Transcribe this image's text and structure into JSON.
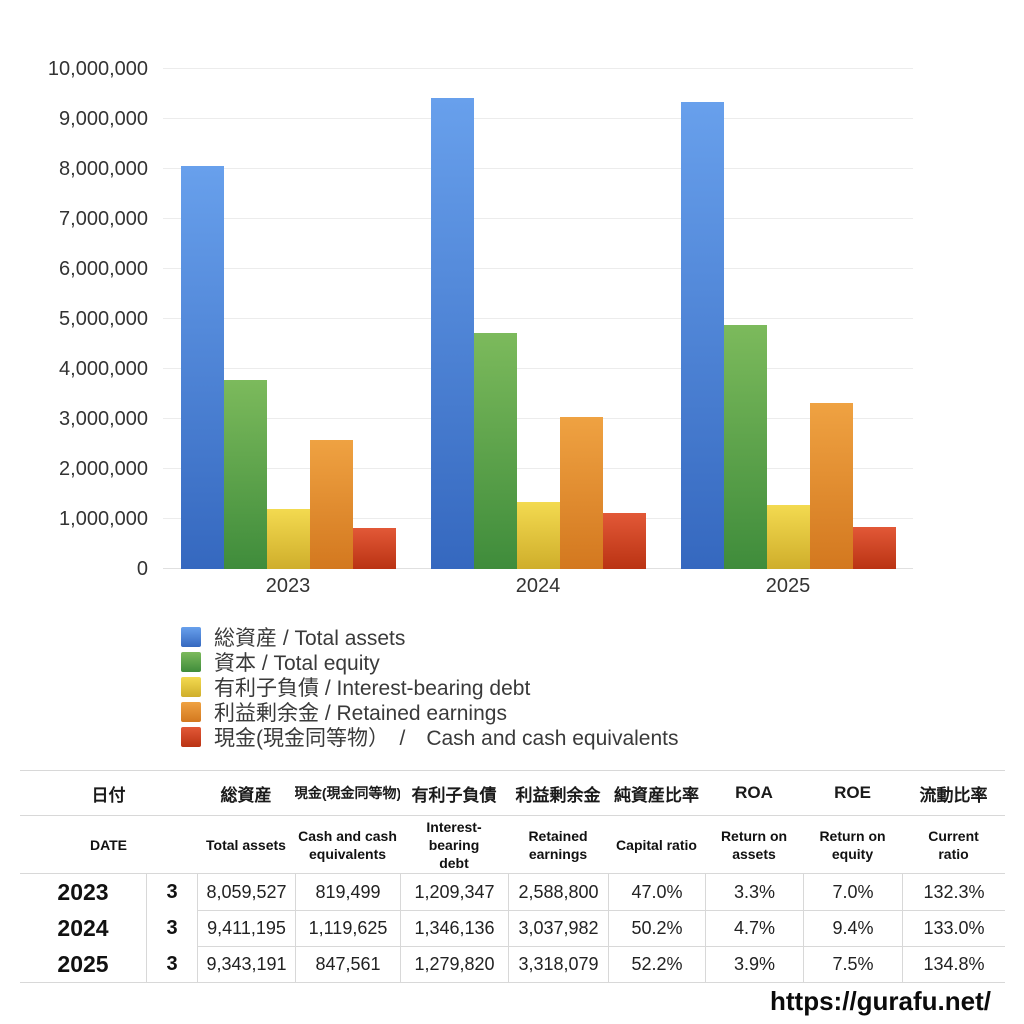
{
  "chart_data": {
    "type": "bar",
    "categories": [
      "2023",
      "2024",
      "2025"
    ],
    "series": [
      {
        "name": "total-assets",
        "legend_label": "総資産 / Total assets",
        "values": [
          8059527,
          9411195,
          9343191
        ],
        "color_top": "#68a0ec",
        "color_bottom": "#3568bf"
      },
      {
        "name": "total-equity",
        "legend_label": "資本 / Total equity",
        "values": [
          3787978,
          4724420,
          4877146
        ],
        "color_top": "#7cba5c",
        "color_bottom": "#3f8c3b"
      },
      {
        "name": "interest-bearing-debt",
        "legend_label": "有利子負債 / Interest-bearing debt",
        "values": [
          1209347,
          1346136,
          1279820
        ],
        "color_top": "#f3da50",
        "color_bottom": "#cfae2b"
      },
      {
        "name": "retained-earnings",
        "legend_label": "利益剰余金 / Retained earnings",
        "values": [
          2588800,
          3037982,
          3318079
        ],
        "color_top": "#efa242",
        "color_bottom": "#d3781f"
      },
      {
        "name": "cash-and-cash-equivalents",
        "legend_label": "現金(現金同等物）　/　Cash and cash equivalents",
        "values": [
          819499,
          1119625,
          847561
        ],
        "color_top": "#e25837",
        "color_bottom": "#ba3313"
      }
    ],
    "ylim": [
      0,
      10000000
    ],
    "ytick_step": 1000000,
    "ytick_labels": [
      "0",
      "1,000,000",
      "2,000,000",
      "3,000,000",
      "4,000,000",
      "5,000,000",
      "6,000,000",
      "7,000,000",
      "8,000,000",
      "9,000,000",
      "10,000,000"
    ],
    "grid": true,
    "legend_position": "bottom-left"
  },
  "table": {
    "header_ja": {
      "date": "日付",
      "cols": [
        "総資産",
        "現金(現金同等物)",
        "有利子負債",
        "利益剰余金",
        "純資産比率",
        "ROA",
        "ROE",
        "流動比率"
      ]
    },
    "header_en": {
      "date": [
        "DATE"
      ],
      "cols": [
        [
          "Total assets"
        ],
        [
          "Cash and cash",
          "equivalents"
        ],
        [
          "Interest-",
          "bearing",
          "debt"
        ],
        [
          "Retained",
          "earnings"
        ],
        [
          "Capital ratio"
        ],
        [
          "Return on",
          "assets"
        ],
        [
          "Return on",
          "equity"
        ],
        [
          "Current",
          "ratio"
        ]
      ]
    },
    "rows": [
      {
        "year": "2023",
        "month": "3",
        "values": [
          "8,059,527",
          "819,499",
          "1,209,347",
          "2,588,800",
          "47.0%",
          "3.3%",
          "7.0%",
          "132.3%"
        ]
      },
      {
        "year": "2024",
        "month": "3",
        "values": [
          "9,411,195",
          "1,119,625",
          "1,346,136",
          "3,037,982",
          "50.2%",
          "4.7%",
          "9.4%",
          "133.0%"
        ]
      },
      {
        "year": "2025",
        "month": "3",
        "values": [
          "9,343,191",
          "847,561",
          "1,279,820",
          "3,318,079",
          "52.2%",
          "3.9%",
          "7.5%",
          "134.8%"
        ]
      }
    ]
  },
  "footer": {
    "watermark": "https://gurafu.net/"
  }
}
